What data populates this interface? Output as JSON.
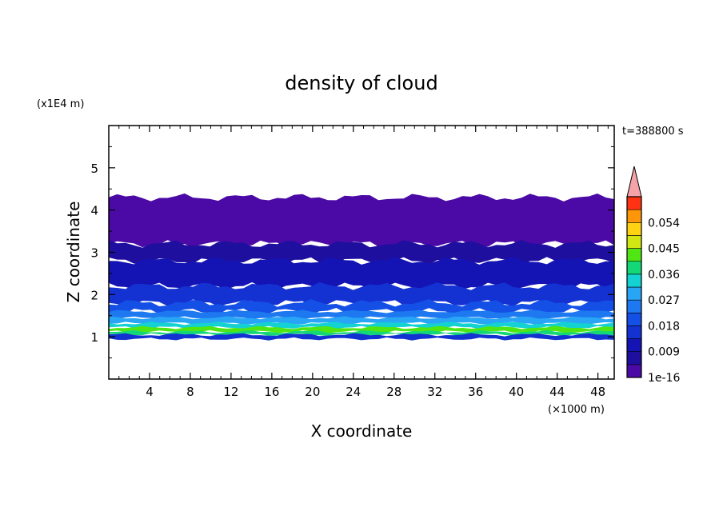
{
  "chart_data": {
    "type": "heatmap",
    "title": "density of cloud",
    "xlabel": "X coordinate",
    "ylabel": "Z coordinate",
    "x_unit": "(×1000 m)",
    "y_unit": "(x1E4 m)",
    "time_label": "t=388800 s",
    "xlim": [
      0,
      49.6
    ],
    "ylim": [
      0,
      6
    ],
    "x_ticks": [
      "4",
      "8",
      "12",
      "16",
      "20",
      "24",
      "28",
      "32",
      "36",
      "40",
      "44",
      "48"
    ],
    "y_ticks": [
      "1",
      "2",
      "3",
      "4",
      "5"
    ],
    "colorbar": {
      "tick_labels": [
        "1e-16",
        "0.009",
        "0.018",
        "0.027",
        "0.036",
        "0.045",
        "0.054"
      ],
      "levels": [
        1e-16,
        0.0045,
        0.009,
        0.0135,
        0.018,
        0.0225,
        0.027,
        0.0315,
        0.036,
        0.0405,
        0.045,
        0.0495,
        0.054,
        0.0585
      ],
      "colors": [
        "#4b0aa6",
        "#1f0f9e",
        "#1414b4",
        "#1432d2",
        "#1450e6",
        "#1e78f0",
        "#28a5f5",
        "#14d2d2",
        "#14d778",
        "#50e614",
        "#d2e614",
        "#ffd214",
        "#ff960a",
        "#ff3214"
      ],
      "extend_color": "#f4a3a8"
    },
    "layers": [
      {
        "z": [
          0.95,
          1.05
        ],
        "level": 3
      },
      {
        "z": [
          1.05,
          1.12
        ],
        "level": 8
      },
      {
        "z": [
          1.12,
          1.22
        ],
        "level": 9
      },
      {
        "z": [
          1.22,
          1.32
        ],
        "level": 7
      },
      {
        "z": [
          1.32,
          1.45
        ],
        "level": 6
      },
      {
        "z": [
          1.45,
          1.6
        ],
        "level": 5
      },
      {
        "z": [
          1.6,
          1.8
        ],
        "level": 4
      },
      {
        "z": [
          1.8,
          2.2
        ],
        "level": 3
      },
      {
        "z": [
          2.2,
          2.8
        ],
        "level": 2
      },
      {
        "z": [
          2.8,
          3.2
        ],
        "level": 1
      },
      {
        "z": [
          3.2,
          4.3
        ],
        "level": 0
      }
    ]
  }
}
